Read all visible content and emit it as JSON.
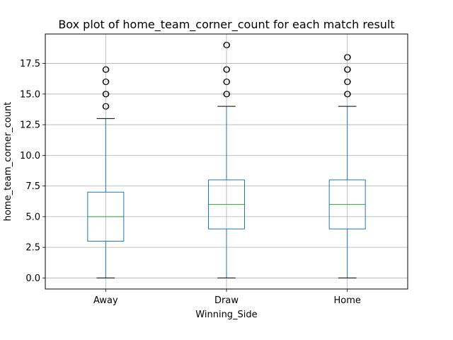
{
  "chart_data": {
    "type": "box",
    "title": "Box plot of home_team_corner_count for each match result",
    "xlabel": "Winning_Side",
    "ylabel": "home_team_corner_count",
    "categories": [
      "Away",
      "Draw",
      "Home"
    ],
    "ylim": [
      -0.9,
      19.9
    ],
    "yticks": [
      0.0,
      2.5,
      5.0,
      7.5,
      10.0,
      12.5,
      15.0,
      17.5
    ],
    "ytick_labels": [
      "0.0",
      "2.5",
      "5.0",
      "7.5",
      "10.0",
      "12.5",
      "15.0",
      "17.5"
    ],
    "grid": true,
    "boxes": [
      {
        "category": "Away",
        "whisker_low": 0,
        "q1": 3,
        "median": 5,
        "q3": 7,
        "whisker_high": 13,
        "outliers": [
          14,
          15,
          16,
          17
        ]
      },
      {
        "category": "Draw",
        "whisker_low": 0,
        "q1": 4,
        "median": 6,
        "q3": 8,
        "whisker_high": 14,
        "outliers": [
          15,
          16,
          17,
          19
        ]
      },
      {
        "category": "Home",
        "whisker_low": 0,
        "q1": 4,
        "median": 6,
        "q3": 8,
        "whisker_high": 14,
        "outliers": [
          15,
          16,
          17,
          18
        ]
      }
    ],
    "colors": {
      "box": "#1f77b4",
      "median": "#2ca02c",
      "outlier": "#000000",
      "grid": "#b0b0b0"
    }
  }
}
